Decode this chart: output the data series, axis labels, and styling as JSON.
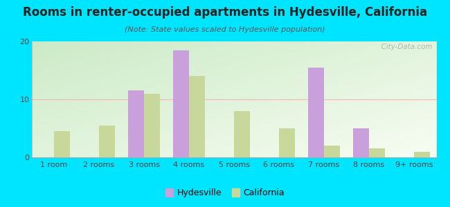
{
  "title": "Rooms in renter-occupied apartments in Hydesville, California",
  "subtitle": "(Note: State values scaled to Hydesville population)",
  "categories": [
    "1 room",
    "2 rooms",
    "3 rooms",
    "4 rooms",
    "5 rooms",
    "6 rooms",
    "7 rooms",
    "8 rooms",
    "9+ rooms"
  ],
  "hydesville": [
    0,
    0,
    11.5,
    18.5,
    0,
    0,
    15.5,
    5.0,
    0
  ],
  "california": [
    4.5,
    5.5,
    11.0,
    14.0,
    8.0,
    5.0,
    2.0,
    1.5,
    1.0
  ],
  "hydesville_color": "#c9a0dc",
  "california_color": "#c8d89a",
  "background_outer": "#00e5ff",
  "ylim": [
    0,
    20
  ],
  "yticks": [
    0,
    10,
    20
  ],
  "watermark": "  City-Data.com",
  "bar_width": 0.35,
  "title_fontsize": 12,
  "subtitle_fontsize": 8,
  "tick_fontsize": 8,
  "legend_fontsize": 9
}
